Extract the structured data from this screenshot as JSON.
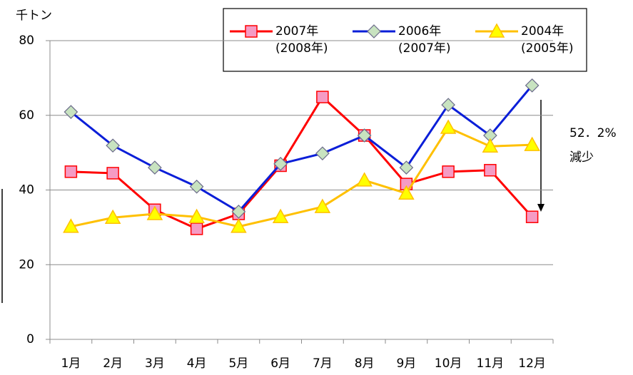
{
  "chart_data": {
    "type": "line",
    "y_label": "千トン",
    "categories": [
      "1月",
      "2月",
      "3月",
      "4月",
      "5月",
      "6月",
      "7月",
      "8月",
      "9月",
      "10月",
      "11月",
      "12月"
    ],
    "series": [
      {
        "name": "2007年\n(2008年)",
        "color": "#ff0000",
        "marker": "square",
        "marker_color": "#f59bc4",
        "values": [
          44.9,
          44.5,
          34.7,
          29.6,
          33.6,
          46.5,
          64.9,
          54.6,
          41.6,
          44.9,
          45.3,
          32.8
        ]
      },
      {
        "name": "2006年\n(2007年)",
        "color": "#0a1ed8",
        "marker": "diamond",
        "marker_color": "#c8e3c0",
        "values": [
          60.9,
          51.9,
          46.0,
          40.9,
          34.2,
          47.0,
          49.8,
          54.6,
          46.0,
          62.8,
          54.6,
          68.0
        ]
      },
      {
        "name": "2004年\n(2005年)",
        "color": "#ffc000",
        "marker": "triangle",
        "marker_color": "#ffff00",
        "values": [
          30.2,
          32.6,
          33.6,
          32.8,
          30.2,
          32.8,
          35.5,
          42.6,
          39.1,
          56.7,
          51.7,
          52.1
        ]
      }
    ],
    "annotations": [
      "52．2%",
      "減少"
    ],
    "ylim": [
      0,
      80
    ],
    "yticks": [
      0,
      20,
      40,
      60,
      80
    ],
    "grid": true
  }
}
